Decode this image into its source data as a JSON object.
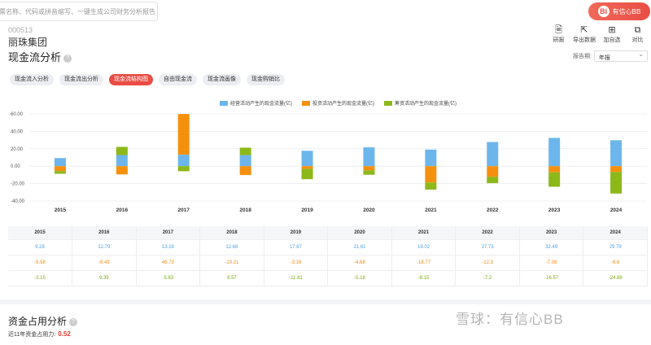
{
  "search": {
    "placeholder": "票名称、代码或拼音缩写、一键生成公司财务分析报告"
  },
  "brand": {
    "label": "有信心BB",
    "logo": "Bi"
  },
  "stock": {
    "code": "000513",
    "name": "丽珠集团"
  },
  "section_title": "现金流分析",
  "help_icon": "?",
  "toolbar": [
    {
      "label": "研报",
      "icon": "🗎"
    },
    {
      "label": "导出数据",
      "icon": "⇱"
    },
    {
      "label": "加自选",
      "icon": "⊞"
    },
    {
      "label": "对比",
      "icon": "⧉"
    }
  ],
  "period": {
    "label": "报告期:",
    "value": "年报"
  },
  "tabs": [
    {
      "label": "现金流入分析",
      "active": false
    },
    {
      "label": "现金流出分析",
      "active": false
    },
    {
      "label": "现金流结构图",
      "active": true
    },
    {
      "label": "自由现金流",
      "active": false
    },
    {
      "label": "现金流画像",
      "active": false
    },
    {
      "label": "现金购销比",
      "active": false
    }
  ],
  "chart_data": {
    "type": "bar",
    "stacked": true,
    "categories": [
      "2015",
      "2016",
      "2017",
      "2018",
      "2019",
      "2020",
      "2021",
      "2022",
      "2023",
      "2024"
    ],
    "ylim": [
      -40,
      60
    ],
    "yticks": [
      "60.00",
      "40.00",
      "20.00",
      "0.00",
      "-20.00",
      "-40.00"
    ],
    "legend_position": "top",
    "series": [
      {
        "name": "经营活动产生的现金流量(亿)",
        "color": "#6cb6ec",
        "values": [
          9.28,
          12.79,
          13.16,
          12.68,
          17.67,
          21.61,
          19.02,
          27.73,
          32.49,
          29.79
        ]
      },
      {
        "name": "投资活动产生的现金流量(亿)",
        "color": "#f5900f",
        "values": [
          -5.58,
          -9.43,
          46.73,
          -10.21,
          -3.16,
          -4.68,
          -18.77,
          -12.3,
          -7.08,
          -6.6
        ]
      },
      {
        "name": "筹资活动产生的现金流量(亿)",
        "color": "#8db81a",
        "values": [
          -3.15,
          9.39,
          -5.83,
          8.57,
          -11.81,
          -5.18,
          -8.15,
          -7.2,
          -16.57,
          -24.86
        ]
      }
    ]
  },
  "table": {
    "headers": [
      "2015",
      "2016",
      "2017",
      "2018",
      "2019",
      "2020",
      "2021",
      "2022",
      "2023",
      "2024"
    ],
    "rows": [
      [
        "9.28",
        "12.79",
        "13.16",
        "12.68",
        "17.67",
        "21.61",
        "19.02",
        "27.73",
        "32.49",
        "29.79"
      ],
      [
        "-5.58",
        "-9.43",
        "46.73",
        "-10.21",
        "-3.16",
        "-4.68",
        "-18.77",
        "-12.3",
        "-7.08",
        "-6.6"
      ],
      [
        "-3.15",
        "9.39",
        "-5.83",
        "8.57",
        "-11.81",
        "-5.18",
        "-8.15",
        "-7.2",
        "-16.57",
        "-24.86"
      ]
    ]
  },
  "section2": {
    "title": "资金占用分析",
    "label": "近11年资金占用力:",
    "value": "0.52"
  },
  "watermark": "雪球：有信心BB"
}
